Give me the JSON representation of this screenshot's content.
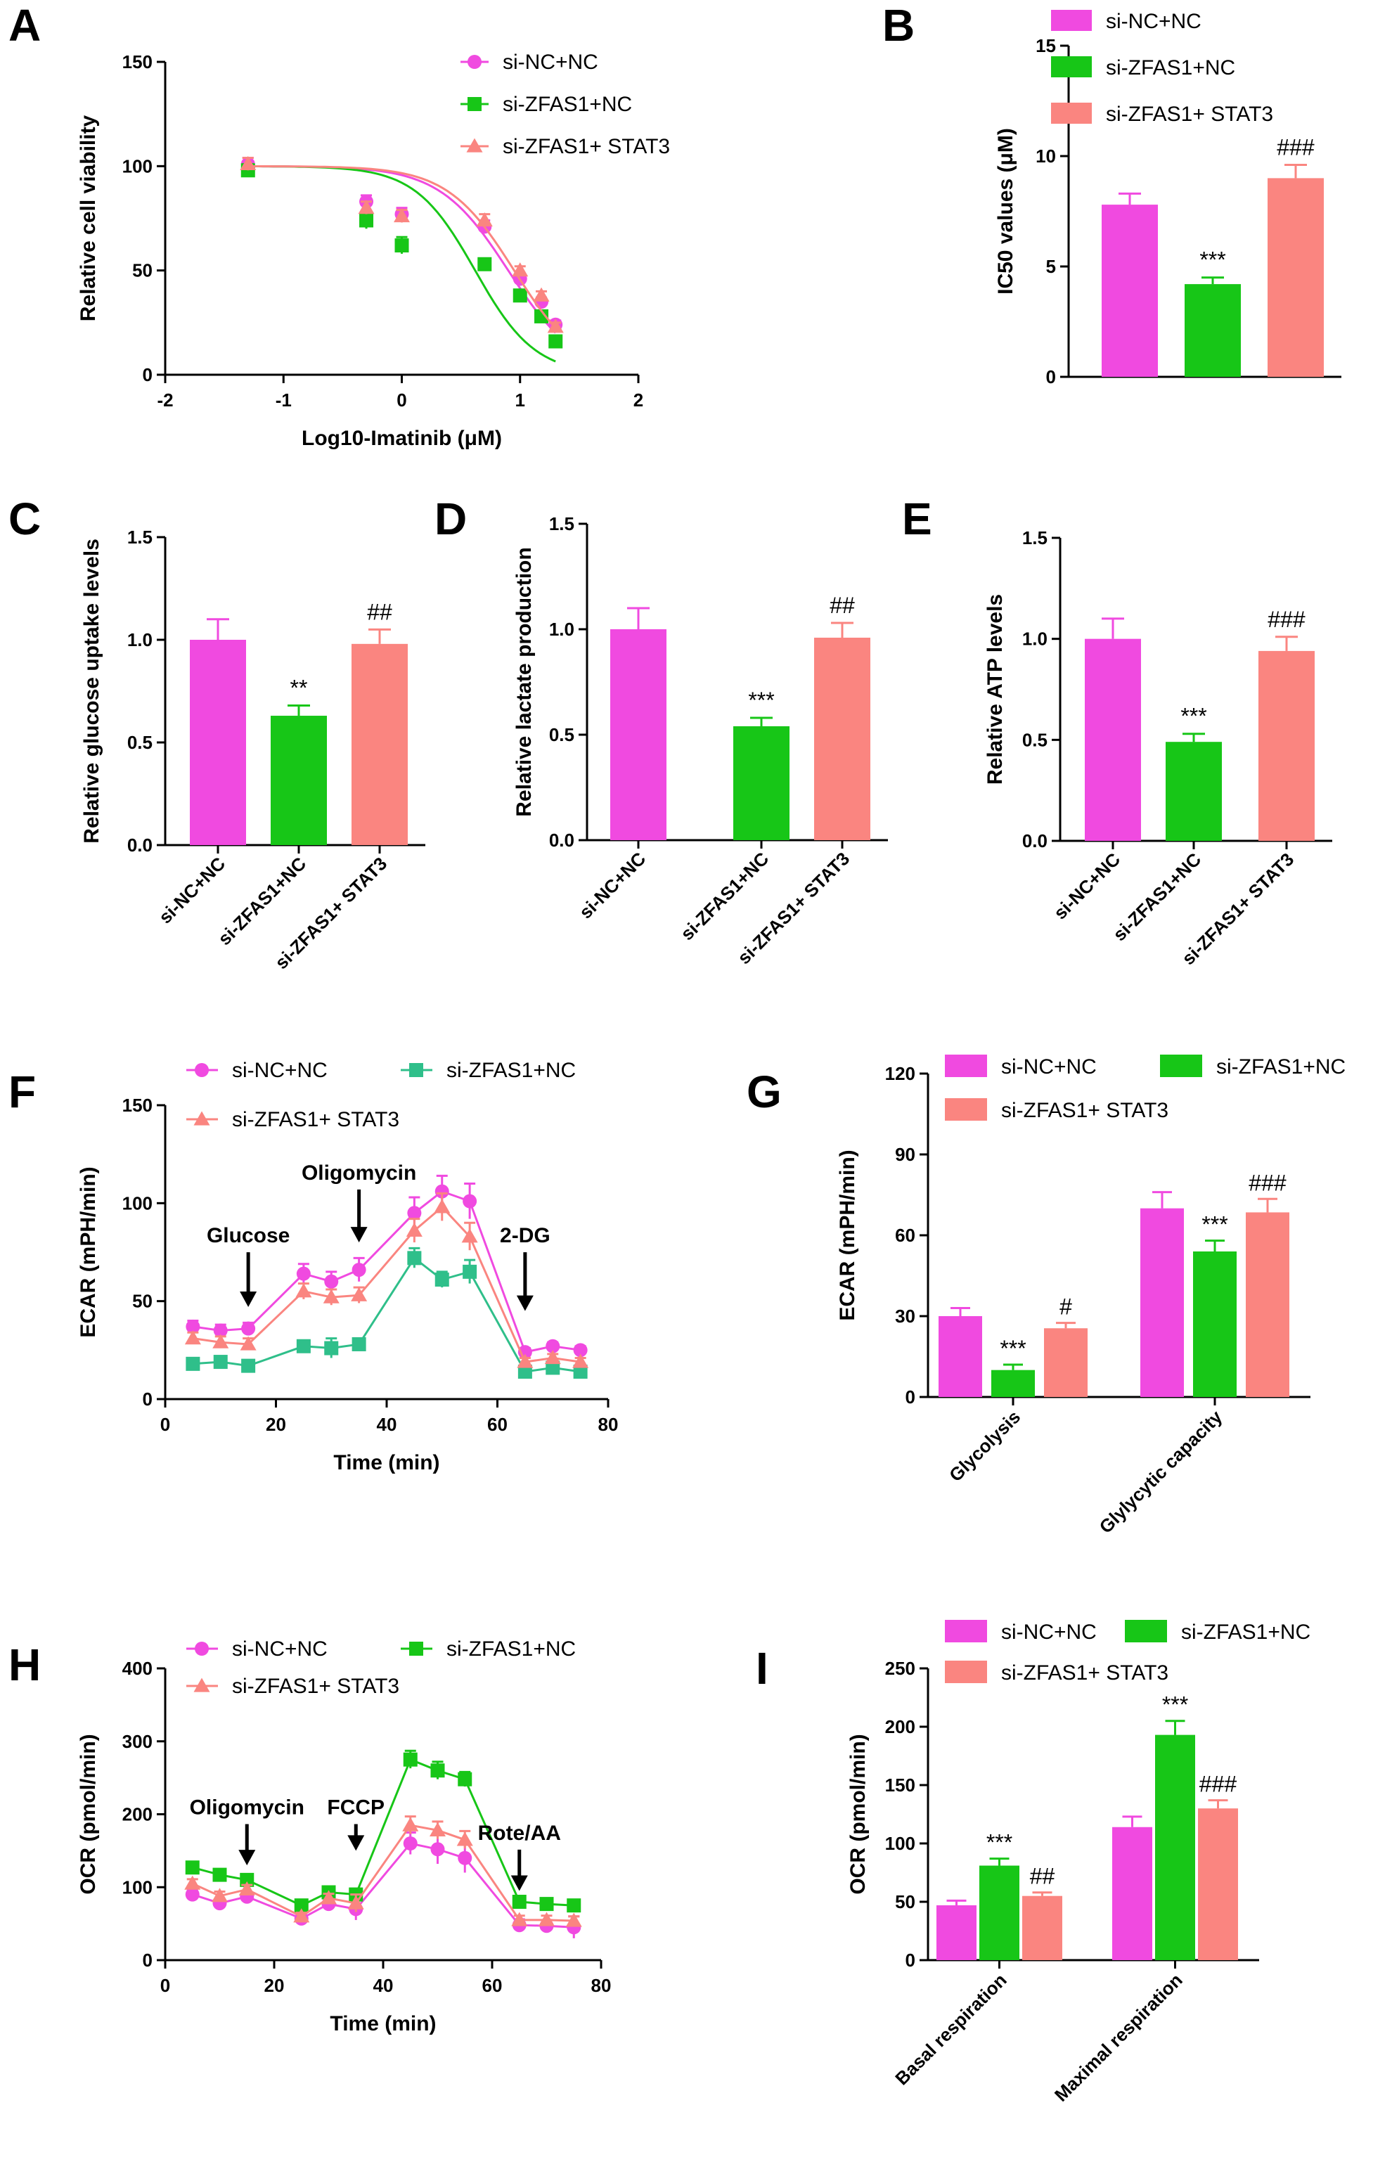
{
  "colors": {
    "nc": "#f04ae0",
    "zfas": "#17c617",
    "stat3": "#fa8580",
    "zfas_line_F": "#2fbf8a"
  },
  "chart_data": [
    {
      "id": "A",
      "type": "scatter",
      "letter": "A",
      "xlabel": "Log10-Imatinib (μM)",
      "ylabel": "Relative cell viability",
      "xlim": [
        -2,
        2
      ],
      "ylim": [
        0,
        150
      ],
      "xticks": [
        "-2",
        "-1",
        "0",
        "1",
        "2"
      ],
      "yticks": [
        "0",
        "50",
        "100",
        "150"
      ],
      "legend": [
        "si-NC+NC",
        "si-ZFAS1+NC",
        "si-ZFAS1+ STAT3"
      ],
      "series": [
        {
          "name": "si-NC+NC",
          "x": [
            -1.3,
            -0.3,
            0,
            0.7,
            1,
            1.18,
            1.3
          ],
          "y": [
            101,
            83,
            77,
            71,
            46,
            35,
            24
          ],
          "err": [
            3,
            3,
            3,
            3,
            2,
            2,
            2
          ],
          "fit": {
            "top": 100,
            "bottom": 0,
            "logic50": 0.9,
            "hill": 0.68
          }
        },
        {
          "name": "si-ZFAS1+NC",
          "x": [
            -1.3,
            -0.3,
            0,
            0.7,
            1,
            1.18,
            1.3
          ],
          "y": [
            98,
            74,
            62,
            53,
            38,
            28,
            16
          ],
          "err": [
            3,
            4,
            4,
            2,
            2,
            2,
            2
          ],
          "fit": {
            "top": 100,
            "bottom": 0,
            "logic50": 0.62,
            "hill": 0.78
          }
        },
        {
          "name": "si-ZFAS1+ STAT3",
          "x": [
            -1.3,
            -0.3,
            0,
            0.7,
            1,
            1.18,
            1.3
          ],
          "y": [
            101,
            80,
            76,
            74,
            50,
            38,
            23
          ],
          "err": [
            3,
            3,
            3,
            3,
            2,
            2,
            2
          ],
          "fit": {
            "top": 100,
            "bottom": 0,
            "logic50": 0.95,
            "hill": 0.7
          }
        }
      ]
    },
    {
      "id": "B",
      "type": "bar",
      "letter": "B",
      "ylabel": "IC50 values (μM)",
      "ylim": [
        0,
        15
      ],
      "yticks": [
        "0",
        "5",
        "10",
        "15"
      ],
      "legend": [
        "si-NC+NC",
        "si-ZFAS1+NC",
        "si-ZFAS1+ STAT3"
      ],
      "categories": [
        "si-NC+NC",
        "si-ZFAS1+NC",
        "si-ZFAS1+ STAT3"
      ],
      "values": [
        7.8,
        4.2,
        9.0
      ],
      "err": [
        0.5,
        0.3,
        0.6
      ],
      "sig": [
        "",
        "***",
        "###"
      ]
    },
    {
      "id": "C",
      "type": "bar",
      "letter": "C",
      "ylabel": "Relative glucose uptake levels",
      "ylim": [
        0,
        1.5
      ],
      "yticks": [
        "0.0",
        "0.5",
        "1.0",
        "1.5"
      ],
      "categories": [
        "si-NC+NC",
        "si-ZFAS1+NC",
        "si-ZFAS1+ STAT3"
      ],
      "values": [
        1.0,
        0.63,
        0.98
      ],
      "err": [
        0.1,
        0.05,
        0.07
      ],
      "sig": [
        "",
        "**",
        "##"
      ]
    },
    {
      "id": "D",
      "type": "bar",
      "letter": "D",
      "ylabel": "Relative lactate production",
      "ylim": [
        0,
        1.5
      ],
      "yticks": [
        "0.0",
        "0.5",
        "1.0",
        "1.5"
      ],
      "categories": [
        "si-NC+NC",
        "si-ZFAS1+NC",
        "si-ZFAS1+ STAT3"
      ],
      "values": [
        1.0,
        0.54,
        0.96
      ],
      "err": [
        0.1,
        0.04,
        0.07
      ],
      "sig": [
        "",
        "***",
        "##"
      ]
    },
    {
      "id": "E",
      "type": "bar",
      "letter": "E",
      "ylabel": "Relative ATP levels",
      "ylim": [
        0,
        1.5
      ],
      "yticks": [
        "0.0",
        "0.5",
        "1.0",
        "1.5"
      ],
      "categories": [
        "si-NC+NC",
        "si-ZFAS1+NC",
        "si-ZFAS1+ STAT3"
      ],
      "values": [
        1.0,
        0.49,
        0.94
      ],
      "err": [
        0.1,
        0.04,
        0.07
      ],
      "sig": [
        "",
        "***",
        "###"
      ]
    },
    {
      "id": "F",
      "type": "line",
      "letter": "F",
      "xlabel": "Time (min)",
      "ylabel": "ECAR (mPH/min)",
      "xlim": [
        0,
        80
      ],
      "ylim": [
        0,
        150
      ],
      "xticks": [
        "0",
        "20",
        "40",
        "60",
        "80"
      ],
      "yticks": [
        "0",
        "50",
        "100",
        "150"
      ],
      "legend": [
        "si-NC+NC",
        "si-ZFAS1+NC",
        "si-ZFAS1+ STAT3"
      ],
      "x": [
        5,
        10,
        15,
        25,
        30,
        35,
        45,
        50,
        55,
        65,
        70,
        75
      ],
      "series": [
        {
          "name": "si-NC+NC",
          "values": [
            37,
            35,
            36,
            64,
            60,
            66,
            95,
            106,
            101,
            24,
            27,
            25
          ],
          "err": [
            3,
            3,
            3,
            5,
            5,
            6,
            8,
            8,
            9,
            2,
            2,
            2
          ]
        },
        {
          "name": "si-ZFAS1+NC",
          "values": [
            18,
            19,
            17,
            27,
            26,
            28,
            72,
            61,
            65,
            14,
            16,
            14
          ],
          "err": [
            2,
            2,
            2,
            2,
            5,
            2,
            5,
            4,
            6,
            2,
            2,
            2
          ]
        },
        {
          "name": "si-ZFAS1+ STAT3",
          "values": [
            31,
            29,
            28,
            55,
            52,
            53,
            86,
            98,
            83,
            19,
            21,
            19
          ],
          "err": [
            3,
            3,
            3,
            4,
            4,
            4,
            6,
            7,
            7,
            2,
            2,
            2
          ]
        }
      ],
      "annotations": [
        {
          "label": "Glucose",
          "x": 15,
          "y_tip": 47,
          "y_label": 80,
          "label_above": true
        },
        {
          "label": "Oligomycin",
          "x": 35,
          "y_tip": 80,
          "y_label": 112,
          "label_above": true
        },
        {
          "label": "2-DG",
          "x": 65,
          "y_tip": 45,
          "y_label": 80,
          "label_above": true
        }
      ]
    },
    {
      "id": "G",
      "type": "bar",
      "letter": "G",
      "ylabel": "ECAR (mPH/min)",
      "ylim": [
        0,
        120
      ],
      "yticks": [
        "0",
        "30",
        "60",
        "90",
        "120"
      ],
      "categories": [
        "Glycolysis",
        "Glylycytic capacity"
      ],
      "legend": [
        "si-NC+NC",
        "si-ZFAS1+NC",
        "si-ZFAS1+ STAT3"
      ],
      "series": [
        {
          "name": "si-NC+NC",
          "values": [
            30,
            70
          ],
          "err": [
            3,
            6
          ],
          "sig": [
            "",
            ""
          ]
        },
        {
          "name": "si-ZFAS1+NC",
          "values": [
            10,
            54
          ],
          "err": [
            2,
            4
          ],
          "sig": [
            "***",
            "***"
          ]
        },
        {
          "name": "si-ZFAS1+ STAT3",
          "values": [
            25.5,
            68.5
          ],
          "err": [
            2,
            5
          ],
          "sig": [
            "#",
            "###"
          ]
        }
      ]
    },
    {
      "id": "H",
      "type": "line",
      "letter": "H",
      "xlabel": "Time (min)",
      "ylabel": "OCR (pmol/min)",
      "xlim": [
        0,
        80
      ],
      "ylim": [
        0,
        400
      ],
      "xticks": [
        "0",
        "20",
        "40",
        "60",
        "80"
      ],
      "yticks": [
        "0",
        "100",
        "200",
        "300",
        "400"
      ],
      "legend": [
        "si-NC+NC",
        "si-ZFAS1+NC",
        "si-ZFAS1+ STAT3"
      ],
      "x": [
        5,
        10,
        15,
        25,
        30,
        35,
        45,
        50,
        55,
        65,
        70,
        75
      ],
      "series": [
        {
          "name": "si-NC+NC",
          "values": [
            90,
            78,
            87,
            57,
            77,
            70,
            160,
            152,
            140,
            48,
            47,
            45
          ],
          "err": [
            6,
            6,
            6,
            5,
            6,
            15,
            15,
            20,
            20,
            8,
            8,
            15
          ]
        },
        {
          "name": "si-ZFAS1+NC",
          "values": [
            127,
            117,
            110,
            75,
            93,
            90,
            275,
            260,
            248,
            80,
            77,
            75
          ],
          "err": [
            5,
            5,
            5,
            5,
            5,
            8,
            12,
            12,
            10,
            5,
            5,
            5
          ]
        },
        {
          "name": "si-ZFAS1+ STAT3",
          "values": [
            105,
            88,
            97,
            60,
            85,
            78,
            185,
            178,
            165,
            55,
            55,
            54
          ],
          "err": [
            6,
            6,
            6,
            5,
            6,
            12,
            12,
            12,
            12,
            6,
            6,
            6
          ]
        }
      ],
      "annotations": [
        {
          "label": "Oligomycin",
          "x": 15,
          "y_tip": 130,
          "y_label": 200,
          "label_above": true
        },
        {
          "label": "FCCP",
          "x": 35,
          "y_tip": 150,
          "y_label": 200,
          "label_above": true
        },
        {
          "label": "Rote/AA",
          "x": 65,
          "y_tip": 95,
          "y_label": 165,
          "label_above": true
        }
      ]
    },
    {
      "id": "I",
      "type": "bar",
      "letter": "I",
      "ylabel": "OCR (pmol/min)",
      "ylim": [
        0,
        250
      ],
      "yticks": [
        "0",
        "50",
        "100",
        "150",
        "200",
        "250"
      ],
      "categories": [
        "Basal respiration",
        "Maximal respiration"
      ],
      "legend": [
        "si-NC+NC",
        "si-ZFAS1+NC",
        "si-ZFAS1+ STAT3"
      ],
      "series": [
        {
          "name": "si-NC+NC",
          "values": [
            47,
            114
          ],
          "err": [
            4,
            9
          ],
          "sig": [
            "",
            ""
          ]
        },
        {
          "name": "si-ZFAS1+NC",
          "values": [
            81,
            193
          ],
          "err": [
            6,
            12
          ],
          "sig": [
            "***",
            "***"
          ]
        },
        {
          "name": "si-ZFAS1+ STAT3",
          "values": [
            55,
            130
          ],
          "err": [
            3,
            7
          ],
          "sig": [
            "##",
            "###"
          ]
        }
      ]
    }
  ]
}
